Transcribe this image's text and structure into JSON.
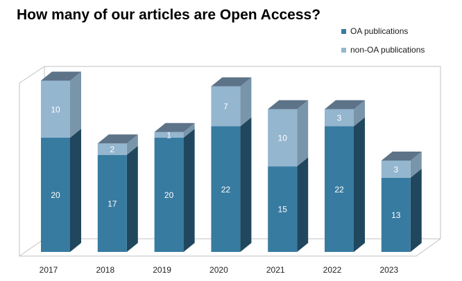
{
  "chart_data": {
    "type": "bar",
    "stacked": true,
    "three_d": true,
    "title": "How many of our articles are Open Access?",
    "categories": [
      "2017",
      "2018",
      "2019",
      "2020",
      "2021",
      "2022",
      "2023"
    ],
    "series": [
      {
        "name": "OA publications",
        "values": [
          20,
          17,
          20,
          22,
          15,
          22,
          13
        ],
        "color": "#387ba0"
      },
      {
        "name": "non-OA publications",
        "values": [
          10,
          2,
          1,
          7,
          10,
          3,
          3
        ],
        "color": "#94b6cf"
      }
    ],
    "xlabel": "",
    "ylabel": "",
    "ylim": [
      0,
      30
    ],
    "grid": false,
    "legend": "top-right"
  }
}
